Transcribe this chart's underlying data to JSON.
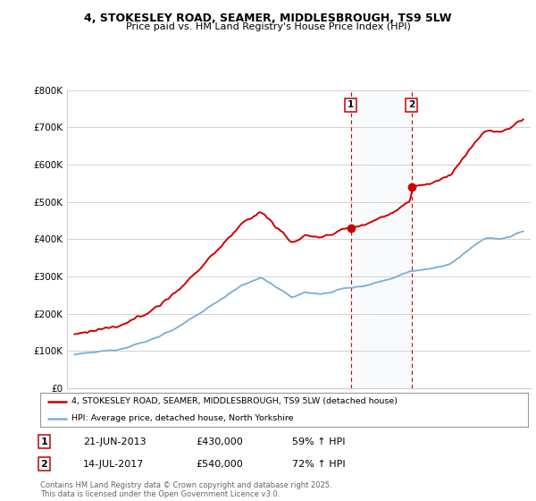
{
  "title_line1": "4, STOKESLEY ROAD, SEAMER, MIDDLESBROUGH, TS9 5LW",
  "title_line2": "Price paid vs. HM Land Registry's House Price Index (HPI)",
  "legend_label_red": "4, STOKESLEY ROAD, SEAMER, MIDDLESBROUGH, TS9 5LW (detached house)",
  "legend_label_blue": "HPI: Average price, detached house, North Yorkshire",
  "transaction1_date": "21-JUN-2013",
  "transaction1_price": "£430,000",
  "transaction1_hpi": "59% ↑ HPI",
  "transaction1_year": 2013.47,
  "transaction1_value": 430000,
  "transaction2_date": "14-JUL-2017",
  "transaction2_price": "£540,000",
  "transaction2_hpi": "72% ↑ HPI",
  "transaction2_year": 2017.54,
  "transaction2_value": 540000,
  "footer": "Contains HM Land Registry data © Crown copyright and database right 2025.\nThis data is licensed under the Open Government Licence v3.0.",
  "red_color": "#cc0000",
  "blue_color": "#7aadd4",
  "background_color": "#ffffff",
  "plot_bg_color": "#ffffff",
  "grid_color": "#cccccc",
  "ylim": [
    0,
    800000
  ],
  "yticks": [
    0,
    100000,
    200000,
    300000,
    400000,
    500000,
    600000,
    700000,
    800000
  ],
  "xlim_start": 1994.5,
  "xlim_end": 2025.5,
  "xticks": [
    1995,
    1996,
    1997,
    1998,
    1999,
    2000,
    2001,
    2002,
    2003,
    2004,
    2005,
    2006,
    2007,
    2008,
    2009,
    2010,
    2011,
    2012,
    2013,
    2014,
    2015,
    2016,
    2017,
    2018,
    2019,
    2020,
    2021,
    2022,
    2023,
    2024,
    2025
  ]
}
